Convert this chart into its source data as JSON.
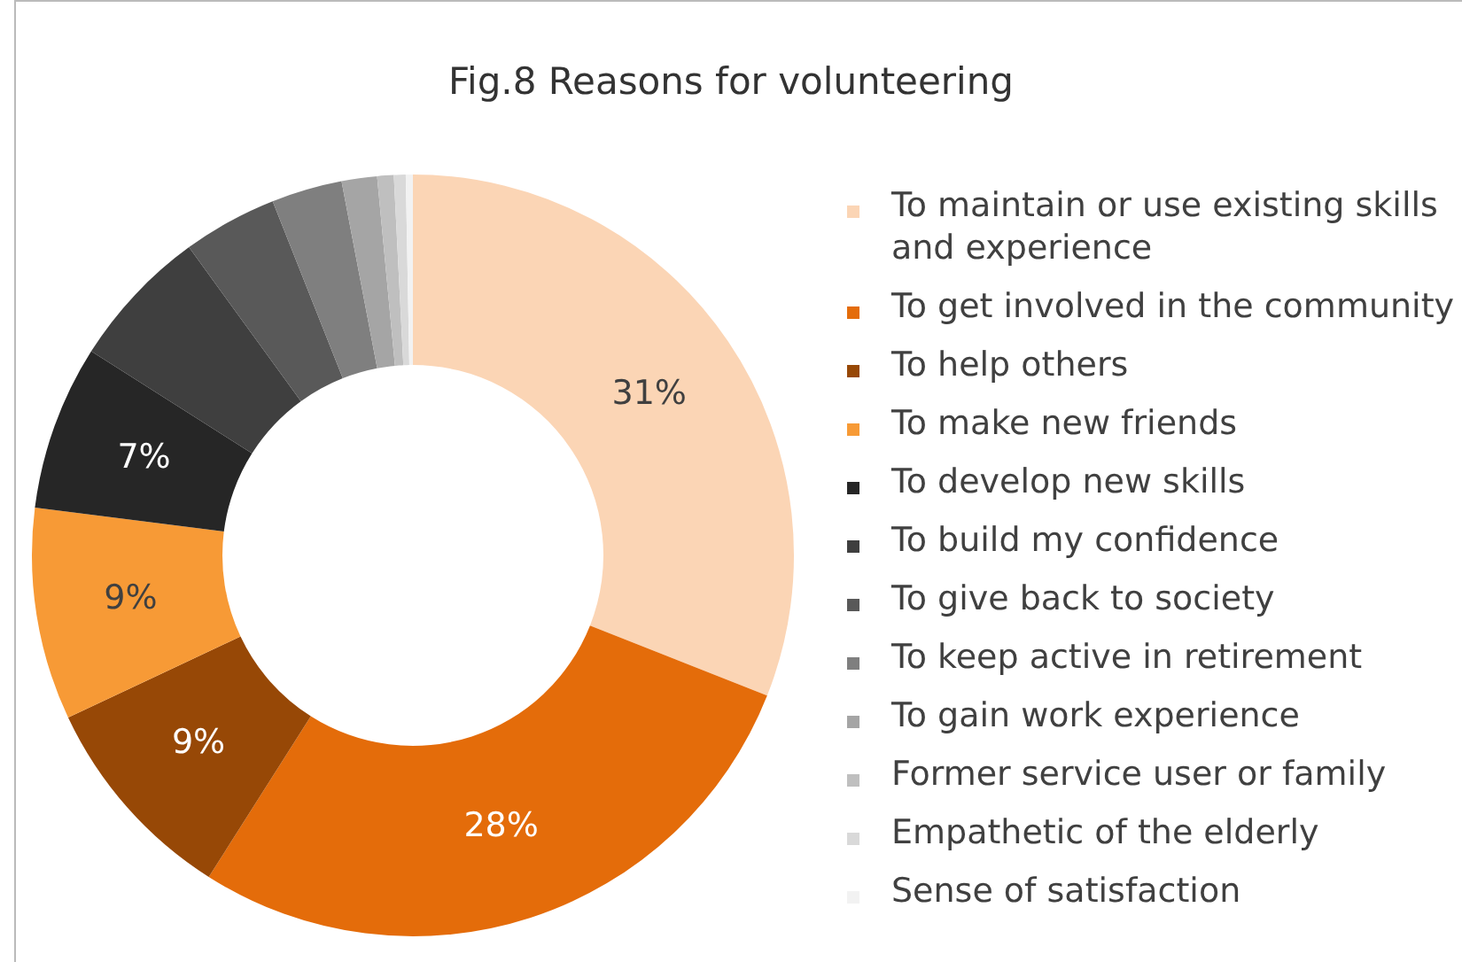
{
  "chart_data": {
    "type": "donut",
    "title": "Fig.8 Reasons for volunteering",
    "categories": [
      "To maintain or use existing skills and experience",
      "To get involved in the community",
      "To help others",
      "To make new friends",
      "To develop new skills",
      "To build my confidence",
      "To give back to society",
      "To keep active in retirement",
      "To gain work experience",
      "Former service user or family",
      "Empathetic of the elderly",
      "Sense of satisfaction"
    ],
    "values": [
      31,
      28,
      9,
      9,
      7,
      6,
      4,
      3,
      1.5,
      0.7,
      0.5,
      0.3
    ],
    "colors": [
      "#fbd5b5",
      "#e46c0a",
      "#974806",
      "#f79a36",
      "#262626",
      "#3f3f3f",
      "#595959",
      "#7f7f7f",
      "#a5a5a5",
      "#bfbfbf",
      "#d9d9d9",
      "#f2f2f2"
    ],
    "value_labels": [
      "31%",
      "28%",
      "9%",
      "9%",
      "7%",
      null,
      null,
      null,
      null,
      null,
      null,
      null
    ],
    "legend": "right"
  }
}
